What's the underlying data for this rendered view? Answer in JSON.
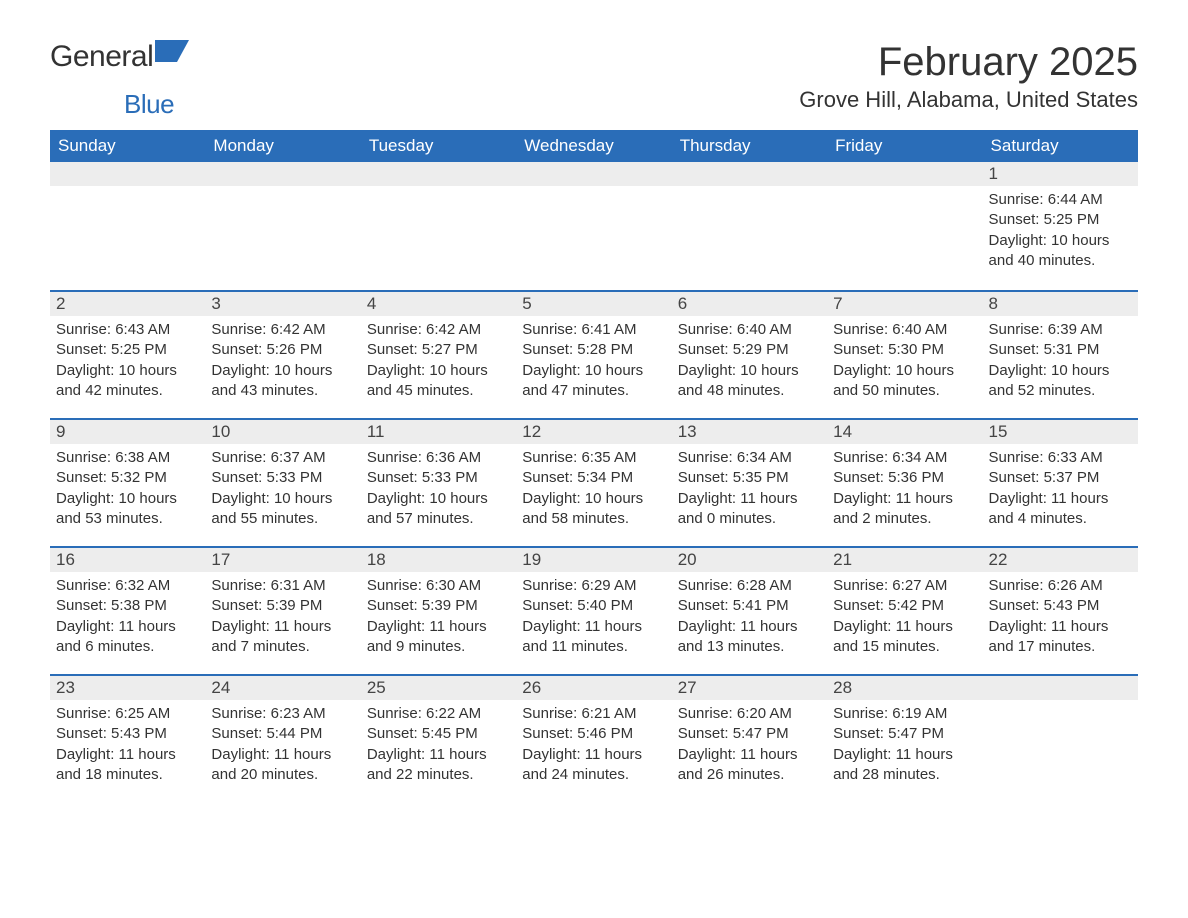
{
  "brand": {
    "name1": "General",
    "name2": "Blue",
    "accent": "#2a6db8"
  },
  "title": "February 2025",
  "location": "Grove Hill, Alabama, United States",
  "colors": {
    "header_bg": "#2a6db8",
    "header_text": "#ffffff",
    "daynum_bg": "#ededed",
    "row_border": "#2a6db8",
    "body_text": "#333333",
    "page_bg": "#ffffff"
  },
  "weekdays": [
    "Sunday",
    "Monday",
    "Tuesday",
    "Wednesday",
    "Thursday",
    "Friday",
    "Saturday"
  ],
  "weeks": [
    [
      null,
      null,
      null,
      null,
      null,
      null,
      {
        "d": "1",
        "sr": "6:44 AM",
        "ss": "5:25 PM",
        "dl": "10 hours and 40 minutes."
      }
    ],
    [
      {
        "d": "2",
        "sr": "6:43 AM",
        "ss": "5:25 PM",
        "dl": "10 hours and 42 minutes."
      },
      {
        "d": "3",
        "sr": "6:42 AM",
        "ss": "5:26 PM",
        "dl": "10 hours and 43 minutes."
      },
      {
        "d": "4",
        "sr": "6:42 AM",
        "ss": "5:27 PM",
        "dl": "10 hours and 45 minutes."
      },
      {
        "d": "5",
        "sr": "6:41 AM",
        "ss": "5:28 PM",
        "dl": "10 hours and 47 minutes."
      },
      {
        "d": "6",
        "sr": "6:40 AM",
        "ss": "5:29 PM",
        "dl": "10 hours and 48 minutes."
      },
      {
        "d": "7",
        "sr": "6:40 AM",
        "ss": "5:30 PM",
        "dl": "10 hours and 50 minutes."
      },
      {
        "d": "8",
        "sr": "6:39 AM",
        "ss": "5:31 PM",
        "dl": "10 hours and 52 minutes."
      }
    ],
    [
      {
        "d": "9",
        "sr": "6:38 AM",
        "ss": "5:32 PM",
        "dl": "10 hours and 53 minutes."
      },
      {
        "d": "10",
        "sr": "6:37 AM",
        "ss": "5:33 PM",
        "dl": "10 hours and 55 minutes."
      },
      {
        "d": "11",
        "sr": "6:36 AM",
        "ss": "5:33 PM",
        "dl": "10 hours and 57 minutes."
      },
      {
        "d": "12",
        "sr": "6:35 AM",
        "ss": "5:34 PM",
        "dl": "10 hours and 58 minutes."
      },
      {
        "d": "13",
        "sr": "6:34 AM",
        "ss": "5:35 PM",
        "dl": "11 hours and 0 minutes."
      },
      {
        "d": "14",
        "sr": "6:34 AM",
        "ss": "5:36 PM",
        "dl": "11 hours and 2 minutes."
      },
      {
        "d": "15",
        "sr": "6:33 AM",
        "ss": "5:37 PM",
        "dl": "11 hours and 4 minutes."
      }
    ],
    [
      {
        "d": "16",
        "sr": "6:32 AM",
        "ss": "5:38 PM",
        "dl": "11 hours and 6 minutes."
      },
      {
        "d": "17",
        "sr": "6:31 AM",
        "ss": "5:39 PM",
        "dl": "11 hours and 7 minutes."
      },
      {
        "d": "18",
        "sr": "6:30 AM",
        "ss": "5:39 PM",
        "dl": "11 hours and 9 minutes."
      },
      {
        "d": "19",
        "sr": "6:29 AM",
        "ss": "5:40 PM",
        "dl": "11 hours and 11 minutes."
      },
      {
        "d": "20",
        "sr": "6:28 AM",
        "ss": "5:41 PM",
        "dl": "11 hours and 13 minutes."
      },
      {
        "d": "21",
        "sr": "6:27 AM",
        "ss": "5:42 PM",
        "dl": "11 hours and 15 minutes."
      },
      {
        "d": "22",
        "sr": "6:26 AM",
        "ss": "5:43 PM",
        "dl": "11 hours and 17 minutes."
      }
    ],
    [
      {
        "d": "23",
        "sr": "6:25 AM",
        "ss": "5:43 PM",
        "dl": "11 hours and 18 minutes."
      },
      {
        "d": "24",
        "sr": "6:23 AM",
        "ss": "5:44 PM",
        "dl": "11 hours and 20 minutes."
      },
      {
        "d": "25",
        "sr": "6:22 AM",
        "ss": "5:45 PM",
        "dl": "11 hours and 22 minutes."
      },
      {
        "d": "26",
        "sr": "6:21 AM",
        "ss": "5:46 PM",
        "dl": "11 hours and 24 minutes."
      },
      {
        "d": "27",
        "sr": "6:20 AM",
        "ss": "5:47 PM",
        "dl": "11 hours and 26 minutes."
      },
      {
        "d": "28",
        "sr": "6:19 AM",
        "ss": "5:47 PM",
        "dl": "11 hours and 28 minutes."
      },
      null
    ]
  ],
  "labels": {
    "sunrise": "Sunrise: ",
    "sunset": "Sunset: ",
    "daylight": "Daylight: "
  }
}
